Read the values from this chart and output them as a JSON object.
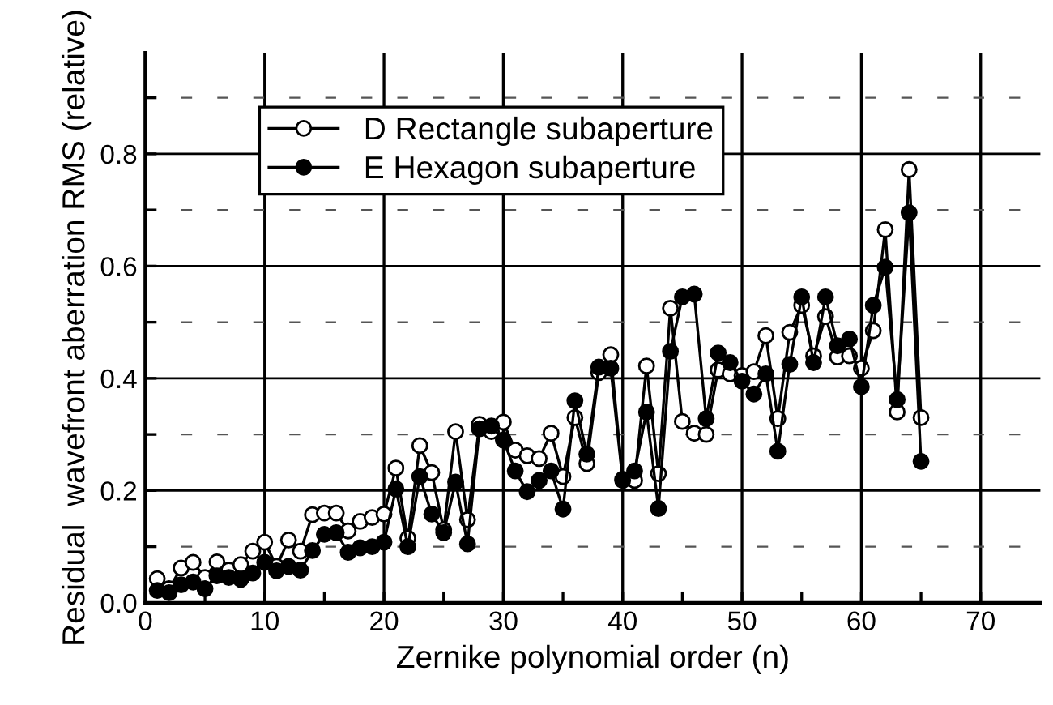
{
  "chart_data": {
    "type": "line",
    "xlabel": "Zernike polynomial order (n)",
    "ylabel": "Residual  wavefront aberration RMS (relative)",
    "x": [
      1,
      2,
      3,
      4,
      5,
      6,
      7,
      8,
      9,
      10,
      11,
      12,
      13,
      14,
      15,
      16,
      17,
      18,
      19,
      20,
      21,
      22,
      23,
      24,
      25,
      26,
      27,
      28,
      29,
      30,
      31,
      32,
      33,
      34,
      35,
      36,
      37,
      38,
      39,
      40,
      41,
      42,
      43,
      44,
      45,
      46,
      47,
      48,
      49,
      50,
      51,
      52,
      53,
      54,
      55,
      56,
      57,
      58,
      59,
      60,
      61,
      62,
      63,
      64,
      65
    ],
    "series": [
      {
        "name": "D Rectangle subaperture",
        "color": "#000000",
        "marker": "circle",
        "values": [
          0.043,
          0.025,
          0.062,
          0.072,
          0.045,
          0.073,
          0.058,
          0.068,
          0.092,
          0.108,
          0.065,
          0.112,
          0.092,
          0.157,
          0.16,
          0.16,
          0.128,
          0.145,
          0.152,
          0.158,
          0.24,
          0.115,
          0.28,
          0.232,
          0.13,
          0.305,
          0.148,
          0.318,
          0.305,
          0.322,
          0.272,
          0.262,
          0.257,
          0.302,
          0.225,
          0.33,
          0.248,
          0.41,
          0.442,
          0.22,
          0.218,
          0.422,
          0.23,
          0.525,
          0.323,
          0.302,
          0.3,
          0.415,
          0.408,
          0.405,
          0.412,
          0.476,
          0.328,
          0.482,
          0.53,
          0.44,
          0.51,
          0.438,
          0.44,
          0.418,
          0.485,
          0.665,
          0.34,
          0.772,
          0.33
        ]
      },
      {
        "name": "E Hexagon subaperture",
        "color": "#000000",
        "marker": "circle",
        "values": [
          0.022,
          0.018,
          0.032,
          0.037,
          0.025,
          0.048,
          0.045,
          0.042,
          0.053,
          0.072,
          0.057,
          0.065,
          0.058,
          0.093,
          0.122,
          0.125,
          0.09,
          0.098,
          0.1,
          0.108,
          0.203,
          0.1,
          0.225,
          0.158,
          0.125,
          0.215,
          0.105,
          0.31,
          0.315,
          0.29,
          0.235,
          0.198,
          0.218,
          0.235,
          0.167,
          0.36,
          0.265,
          0.42,
          0.418,
          0.218,
          0.235,
          0.34,
          0.168,
          0.448,
          0.545,
          0.55,
          0.328,
          0.445,
          0.428,
          0.395,
          0.372,
          0.408,
          0.27,
          0.425,
          0.545,
          0.428,
          0.545,
          0.458,
          0.47,
          0.385,
          0.53,
          0.598,
          0.362,
          0.695,
          0.252
        ]
      }
    ],
    "xlim": [
      0,
      75
    ],
    "xticks": [
      0,
      {
        "value": 5,
        "label": null
      },
      10,
      {
        "value": 15,
        "label": null
      },
      20,
      {
        "value": 25,
        "label": null
      },
      30,
      {
        "value": 35,
        "label": null
      },
      40,
      {
        "value": 45,
        "label": null
      },
      50,
      {
        "value": 55,
        "label": null
      },
      60,
      {
        "value": 65,
        "label": null
      },
      70
    ],
    "ylim": [
      0,
      0.98
    ],
    "yticks": [
      {
        "value": 0,
        "label": "0.0"
      },
      {
        "value": 0.1,
        "label": null
      },
      0.2,
      {
        "value": 0.3,
        "label": null
      },
      0.4,
      {
        "value": 0.5,
        "label": null
      },
      0.6,
      {
        "value": 0.7,
        "label": null
      },
      0.8,
      {
        "value": 0.9,
        "label": null
      }
    ],
    "grid": true,
    "legend": "top left",
    "line_style": "solid"
  }
}
